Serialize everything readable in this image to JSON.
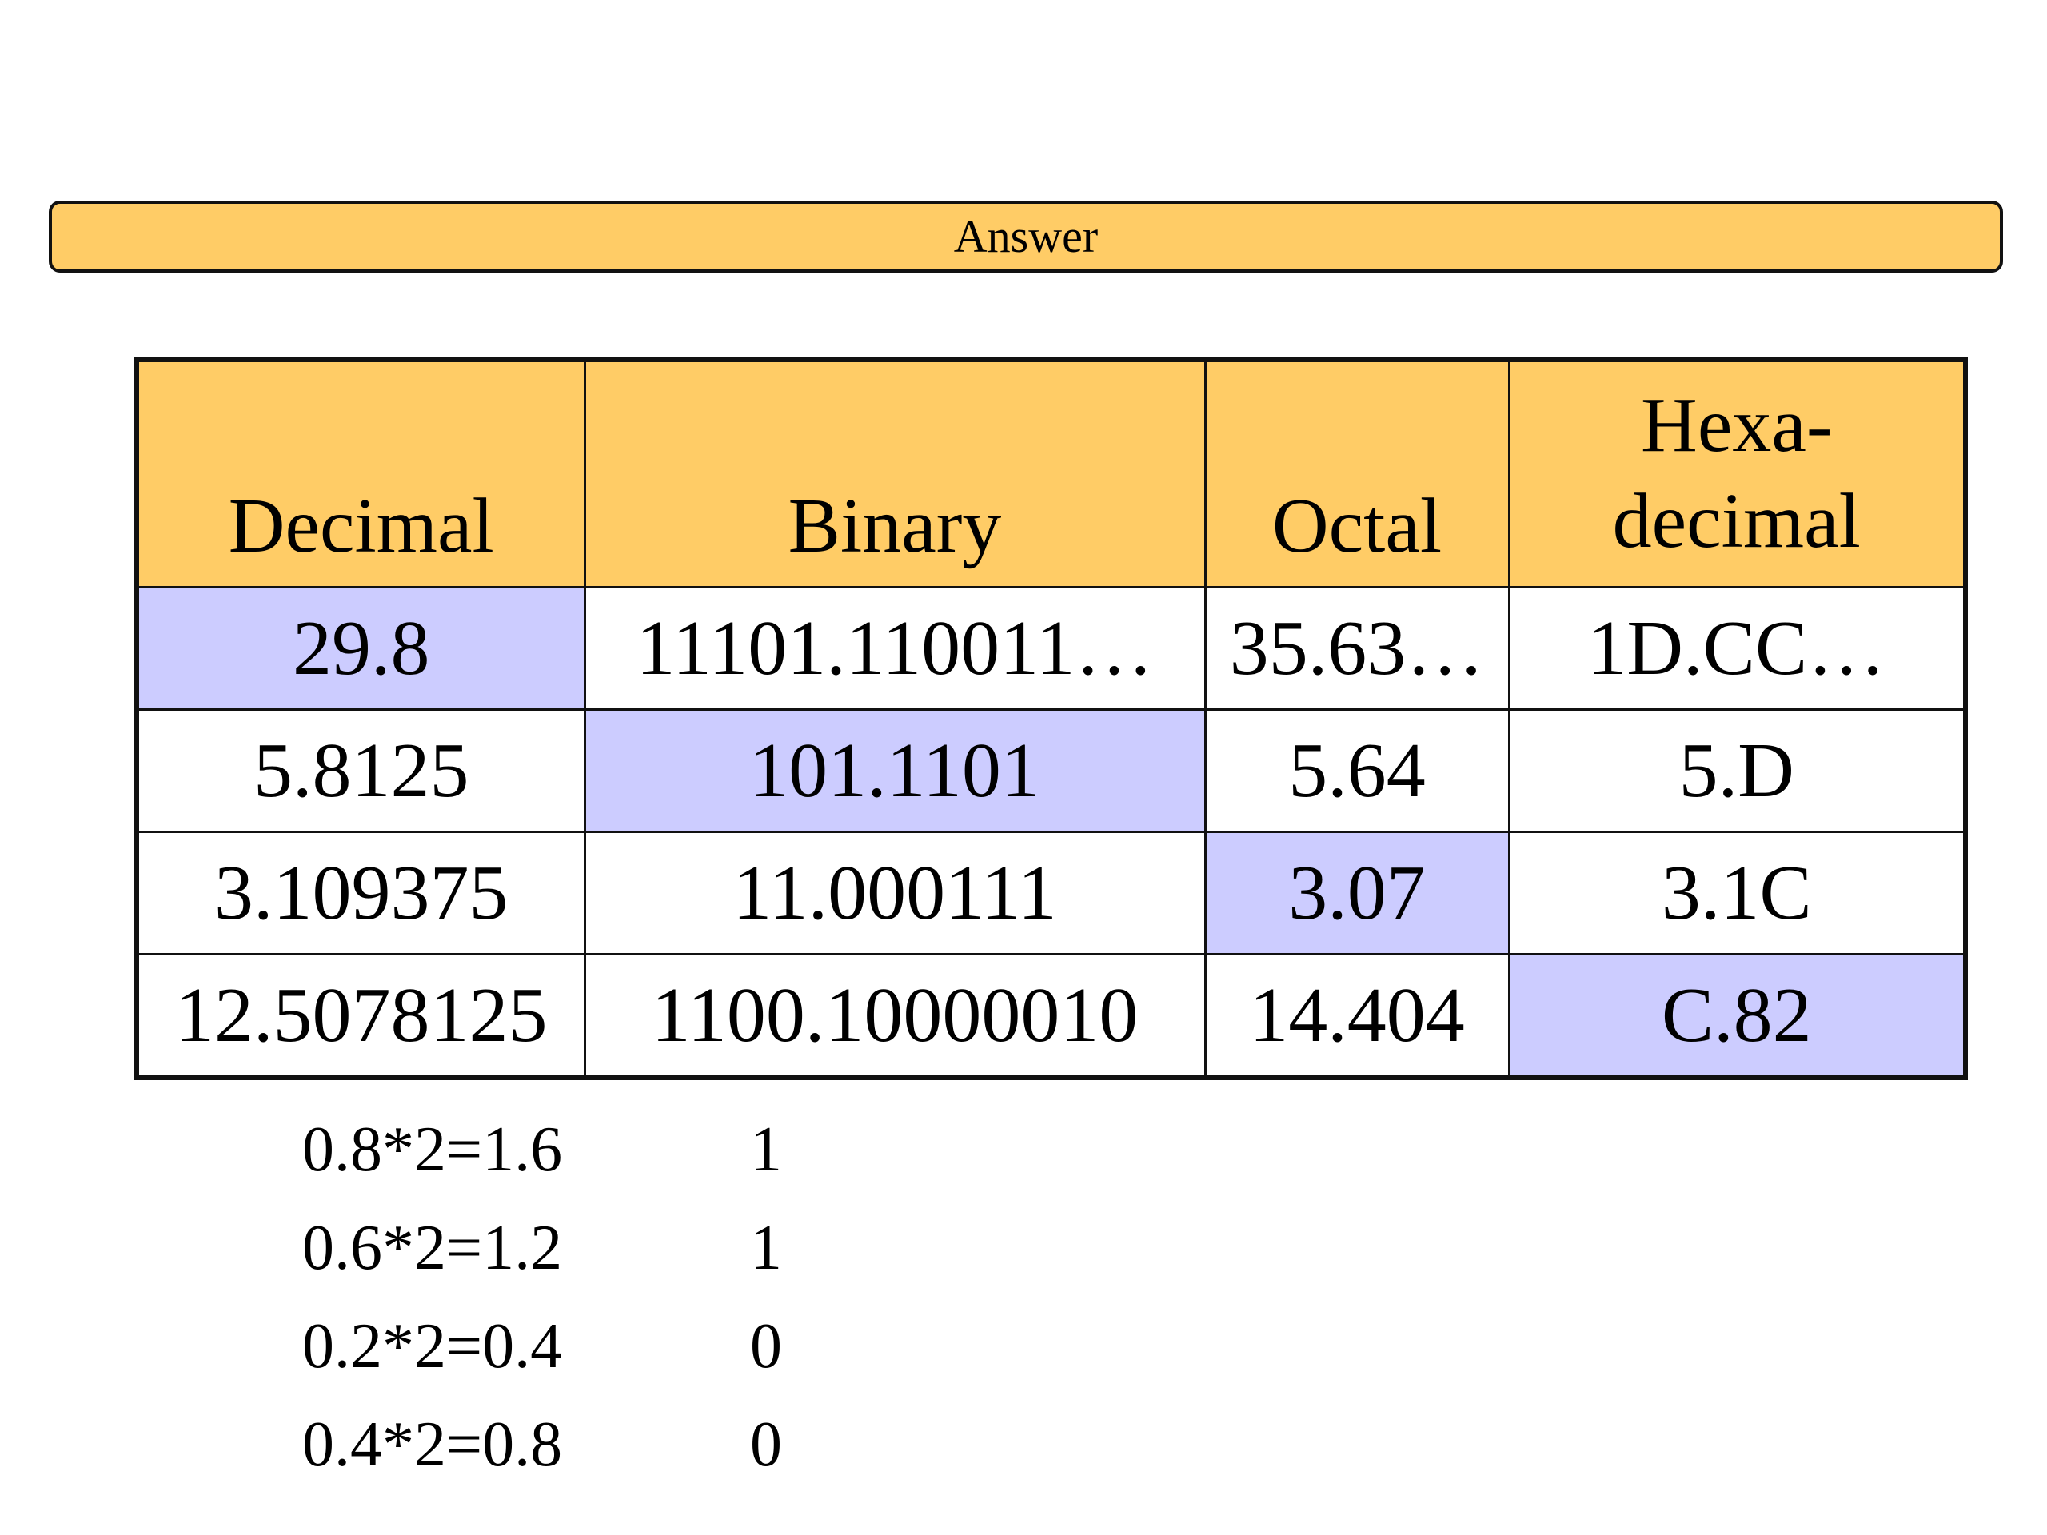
{
  "answer_label": "Answer",
  "table": {
    "headers": {
      "decimal": "Decimal",
      "binary": "Binary",
      "octal": "Octal",
      "hex_line1": "Hexa-",
      "hex_line2": "decimal"
    },
    "rows": [
      {
        "decimal": "29.8",
        "binary": "11101.110011…",
        "octal": "35.63…",
        "hex": "1D.CC…",
        "given": "decimal"
      },
      {
        "decimal": "5.8125",
        "binary": "101.1101",
        "octal": "5.64",
        "hex": "5.D",
        "given": "binary"
      },
      {
        "decimal": "3.109375",
        "binary": "11.000111",
        "octal": "3.07",
        "hex": "3.1C",
        "given": "octal"
      },
      {
        "decimal": "12.5078125",
        "binary": "1100.10000010",
        "octal": "14.404",
        "hex": "C.82",
        "given": "hex"
      }
    ],
    "colors": {
      "header_bg": "#ffcc66",
      "given_bg": "#ccccff"
    }
  },
  "steps": [
    {
      "expr": "0.8*2=1.6",
      "bit": "1"
    },
    {
      "expr": "0.6*2=1.2",
      "bit": "1"
    },
    {
      "expr": "0.2*2=0.4",
      "bit": "0"
    },
    {
      "expr": "0.4*2=0.8",
      "bit": "0"
    }
  ]
}
